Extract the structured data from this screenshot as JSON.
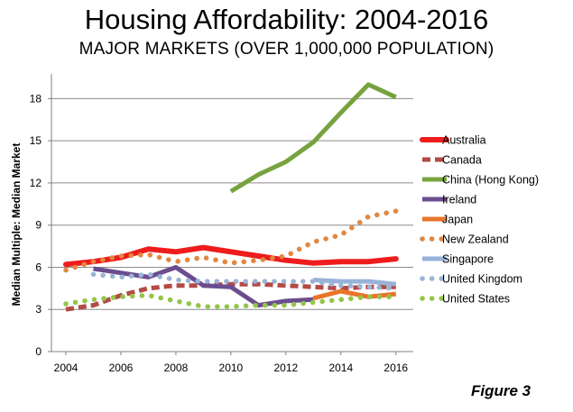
{
  "chart_data": {
    "type": "line",
    "title": "Housing Affordability: 2004-2016",
    "subtitle": "MAJOR MARKETS (OVER 1,000,000 POPULATION)",
    "xlabel": "",
    "ylabel": "Median Multiple: Median Market",
    "x_ticks": [
      2004,
      2006,
      2008,
      2010,
      2012,
      2014,
      2016
    ],
    "y_ticks": [
      0,
      3,
      6,
      9,
      12,
      15,
      18
    ],
    "xlim": [
      2004,
      2016.5
    ],
    "ylim": [
      0,
      19.5
    ],
    "grid": "horizontal",
    "legend_position": "right",
    "series": [
      {
        "name": "Australia",
        "style": "solid-thick",
        "color": "#ee1c1c",
        "x": [
          2004,
          2005,
          2006,
          2007,
          2008,
          2009,
          2010,
          2011,
          2012,
          2013,
          2014,
          2015,
          2016
        ],
        "y": [
          6.2,
          6.4,
          6.7,
          7.3,
          7.1,
          7.4,
          7.1,
          6.8,
          6.5,
          6.3,
          6.4,
          6.4,
          6.6
        ]
      },
      {
        "name": "Canada",
        "style": "dashed",
        "color": "#b34a45",
        "x": [
          2004,
          2005,
          2006,
          2007,
          2008,
          2009,
          2010,
          2011,
          2012,
          2013,
          2014,
          2015,
          2016
        ],
        "y": [
          3.0,
          3.3,
          4.0,
          4.5,
          4.7,
          4.7,
          4.8,
          4.8,
          4.7,
          4.6,
          4.5,
          4.6,
          4.6
        ]
      },
      {
        "name": "China (Hong Kong)",
        "style": "solid",
        "color": "#77a33f",
        "x": [
          2010,
          2011,
          2012,
          2013,
          2014,
          2015,
          2016
        ],
        "y": [
          11.4,
          12.6,
          13.5,
          14.9,
          17.0,
          19.0,
          18.1
        ]
      },
      {
        "name": "Ireland",
        "style": "solid",
        "color": "#6b4d8f",
        "x": [
          2005,
          2006,
          2007,
          2008,
          2009,
          2010,
          2011,
          2012,
          2013
        ],
        "y": [
          5.9,
          5.6,
          5.3,
          6.0,
          4.7,
          4.6,
          3.3,
          3.6,
          3.7
        ]
      },
      {
        "name": "Japan",
        "style": "solid",
        "color": "#e8742a",
        "x": [
          2013,
          2014,
          2015,
          2016
        ],
        "y": [
          3.8,
          4.3,
          3.9,
          4.1
        ]
      },
      {
        "name": "New Zealand",
        "style": "dotted",
        "color": "#e3873f",
        "x": [
          2004,
          2005,
          2006,
          2007,
          2008,
          2009,
          2010,
          2011,
          2012,
          2013,
          2014,
          2015,
          2016
        ],
        "y": [
          5.8,
          6.4,
          6.8,
          6.9,
          6.4,
          6.7,
          6.3,
          6.5,
          6.8,
          7.8,
          8.3,
          9.6,
          10.0
        ]
      },
      {
        "name": "Singapore",
        "style": "solid",
        "color": "#97b3d9",
        "x": [
          2013,
          2014,
          2015,
          2016
        ],
        "y": [
          5.1,
          5.0,
          5.0,
          4.8
        ]
      },
      {
        "name": "United Kingdom",
        "style": "dotted",
        "color": "#9ab4d6",
        "x": [
          2005,
          2006,
          2007,
          2008,
          2009,
          2010,
          2011,
          2012,
          2013,
          2014,
          2015,
          2016
        ],
        "y": [
          5.5,
          5.3,
          5.5,
          5.1,
          5.0,
          5.0,
          5.0,
          5.0,
          5.0,
          4.7,
          4.6,
          4.5
        ]
      },
      {
        "name": "United States",
        "style": "dotted",
        "color": "#94c548",
        "x": [
          2004,
          2005,
          2006,
          2007,
          2008,
          2009,
          2010,
          2011,
          2012,
          2013,
          2014,
          2015,
          2016
        ],
        "y": [
          3.4,
          3.7,
          3.9,
          4.0,
          3.6,
          3.2,
          3.2,
          3.3,
          3.3,
          3.5,
          3.7,
          3.9,
          3.9
        ]
      }
    ]
  },
  "figure_label": "Figure 3"
}
